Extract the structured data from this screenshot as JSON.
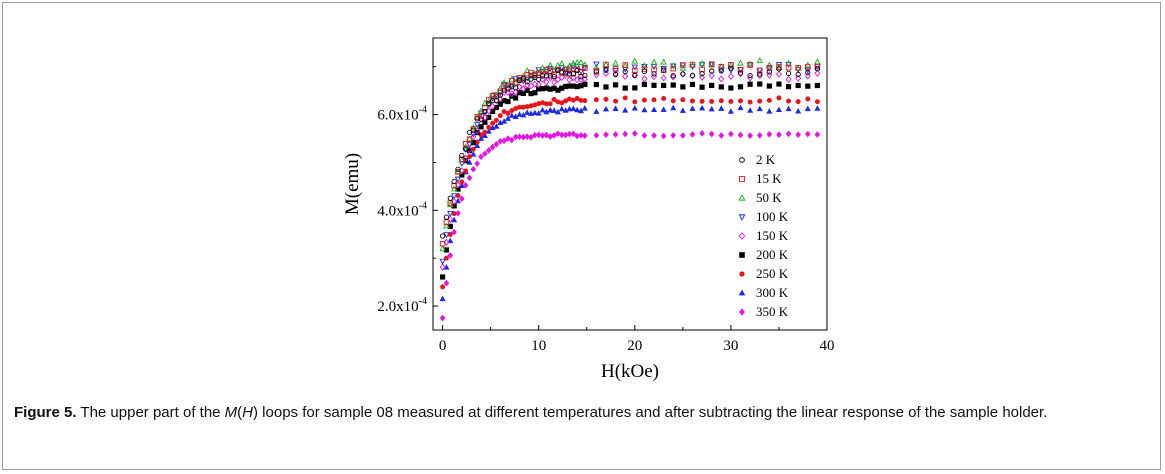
{
  "chart_data": {
    "type": "scatter",
    "title": "",
    "xlabel": "H(kOe)",
    "ylabel": "M(emu)",
    "xlim": [
      -1,
      40
    ],
    "ylim": [
      0.00015,
      0.00076
    ],
    "x_ticks": [
      0,
      10,
      20,
      30,
      40
    ],
    "x_tick_labels": [
      "0",
      "10",
      "20",
      "30",
      "40"
    ],
    "y_ticks": [
      0.0002,
      0.0004,
      0.0006
    ],
    "y_tick_labels": [
      {
        "mantissa": "2.0x10",
        "exponent": "-4"
      },
      {
        "mantissa": "4.0x10",
        "exponent": "-4"
      },
      {
        "mantissa": "6.0x10",
        "exponent": "-4"
      }
    ],
    "grid": false,
    "legend_position": "right",
    "series": [
      {
        "name": "2 K",
        "marker": "circle-open",
        "color": "#000000",
        "Msat": 0.00069,
        "Mstart": 0.000345,
        "tau": 3.0,
        "noise": 9e-06
      },
      {
        "name": "15 K",
        "marker": "square-open",
        "color": "#e8141c",
        "Msat": 0.000698,
        "Mstart": 0.00033,
        "tau": 3.0,
        "noise": 8e-06
      },
      {
        "name": "50 K",
        "marker": "triangle-open",
        "color": "#12b512",
        "Msat": 0.000705,
        "Mstart": 0.00032,
        "tau": 3.0,
        "noise": 8e-06
      },
      {
        "name": "100 K",
        "marker": "tri-down-open",
        "color": "#1a2ae8",
        "Msat": 0.0007,
        "Mstart": 0.000295,
        "tau": 2.9,
        "noise": 8e-06
      },
      {
        "name": "150 K",
        "marker": "diamond-open",
        "color": "#e514e5",
        "Msat": 0.00068,
        "Mstart": 0.00028,
        "tau": 2.8,
        "noise": 7e-06
      },
      {
        "name": "200 K",
        "marker": "square",
        "color": "#000000",
        "Msat": 0.00066,
        "Mstart": 0.00026,
        "tau": 2.6,
        "noise": 5e-06
      },
      {
        "name": "250 K",
        "marker": "circle",
        "color": "#e8141c",
        "Msat": 0.00063,
        "Mstart": 0.00024,
        "tau": 2.4,
        "noise": 5e-06
      },
      {
        "name": "300 K",
        "marker": "triangle",
        "color": "#1a2ae8",
        "Msat": 0.00061,
        "Mstart": 0.000215,
        "tau": 2.2,
        "noise": 4e-06
      },
      {
        "name": "350 K",
        "marker": "diamond",
        "color": "#e514e5",
        "Msat": 0.000558,
        "Mstart": 0.000175,
        "tau": 1.9,
        "noise": 3e-06
      }
    ],
    "sampling": {
      "dense_step": 0.4,
      "dense_until": 15,
      "sparse_step": 1.0,
      "x_max": 39
    }
  },
  "caption": {
    "label": "Figure 5.",
    "text_before": " The upper part of the ",
    "italic_m": "M",
    "paren_open": "(",
    "italic_h": "H",
    "text_after": ") loops for sample 08 measured at different temperatures and after subtracting the linear response of the sample holder."
  }
}
